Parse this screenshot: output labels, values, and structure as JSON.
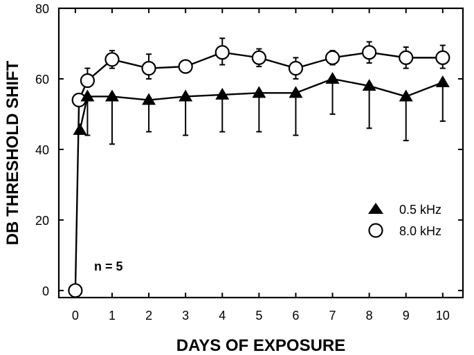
{
  "chart_data": {
    "type": "line",
    "xlabel": "DAYS OF EXPOSURE",
    "ylabel": "DB THRESHOLD SHIFT",
    "xlim": [
      -0.45,
      10.55
    ],
    "ylim": [
      -2,
      80
    ],
    "xticks": [
      0,
      1,
      2,
      3,
      4,
      5,
      6,
      7,
      8,
      9,
      10
    ],
    "yticks": [
      0,
      20,
      40,
      60,
      80
    ],
    "grid": false,
    "legend_position": "right",
    "annotation": "n = 5",
    "series": [
      {
        "name": "0.5 kHz",
        "marker": "triangle-filled",
        "color": "#000000",
        "x": [
          0.125,
          0.33,
          1,
          2,
          3,
          4,
          5,
          6,
          7,
          8,
          9,
          10
        ],
        "y": [
          45.5,
          55,
          55,
          54,
          55,
          55.5,
          56,
          56,
          60,
          58,
          55,
          59
        ],
        "err_lower": [
          0,
          11,
          13.5,
          9,
          11,
          10.5,
          11,
          12,
          10,
          12,
          12.5,
          11
        ],
        "err_upper": [
          0,
          0,
          0,
          0,
          0,
          0,
          0,
          0,
          0,
          0,
          0,
          0
        ]
      },
      {
        "name": "8.0 kHz",
        "marker": "circle-open",
        "color": "#000000",
        "x": [
          0,
          0.1,
          0.33,
          1,
          2,
          3,
          4,
          5,
          6,
          7,
          8,
          9,
          10
        ],
        "y": [
          0,
          54,
          59.5,
          65.5,
          63,
          63.5,
          67.5,
          66,
          63,
          66,
          67.5,
          66,
          66
        ],
        "err_lower": [
          0,
          0,
          0,
          2.5,
          3,
          0,
          3.5,
          2.5,
          3,
          2,
          3,
          3,
          3
        ],
        "err_upper": [
          0,
          0,
          3.5,
          2.5,
          4,
          0,
          4,
          2.5,
          3,
          2,
          3,
          3,
          3.5
        ]
      }
    ]
  }
}
